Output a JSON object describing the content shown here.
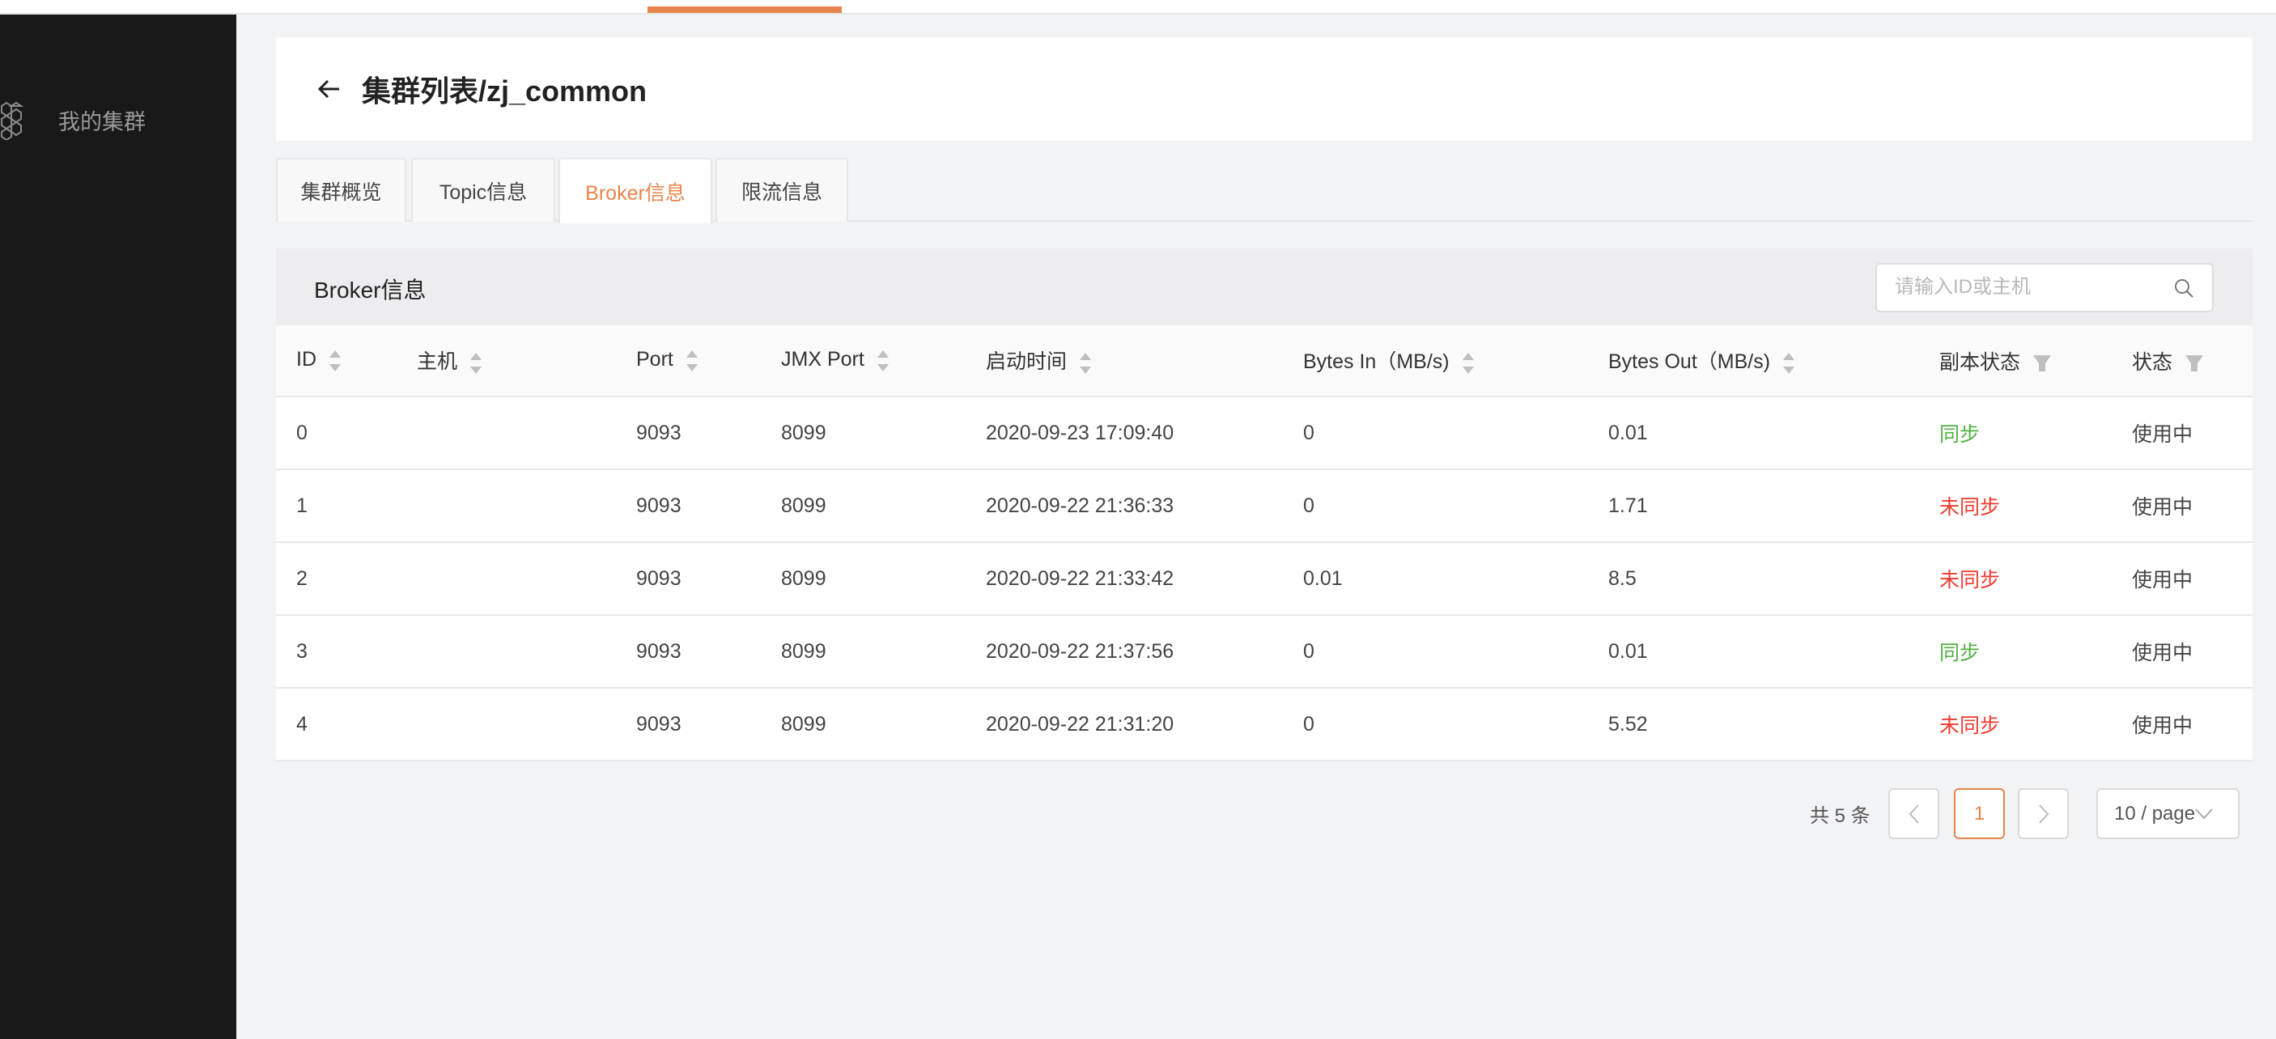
{
  "colors": {
    "accent": "#e8844a",
    "sidebar": "#191919",
    "synced": "#52b043",
    "unsynced": "#f03a2f"
  },
  "sidebar": {
    "items": [
      {
        "label": "我的集群",
        "icon": "hexagon-cluster-icon"
      }
    ]
  },
  "header": {
    "title": "集群列表/zj_common",
    "back_icon": "arrow-left-icon"
  },
  "tabs": [
    {
      "label": "集群概览"
    },
    {
      "label": "Topic信息"
    },
    {
      "label": "Broker信息",
      "active": true
    },
    {
      "label": "限流信息"
    }
  ],
  "broker": {
    "title": "Broker信息",
    "search": {
      "placeholder": "请输入ID或主机",
      "value": ""
    },
    "columns": [
      "ID",
      "主机",
      "Port",
      "JMX Port",
      "启动时间",
      "Bytes In（MB/s)",
      "Bytes Out（MB/s)",
      "副本状态",
      "状态"
    ],
    "rows": [
      {
        "id": "0",
        "host": "",
        "port": "9093",
        "jmx": "8099",
        "start": "2020-09-23 17:09:40",
        "in": "0",
        "out": "0.01",
        "replica": "同步",
        "replica_ok": true,
        "status": "使用中"
      },
      {
        "id": "1",
        "host": "",
        "port": "9093",
        "jmx": "8099",
        "start": "2020-09-22 21:36:33",
        "in": "0",
        "out": "1.71",
        "replica": "未同步",
        "replica_ok": false,
        "status": "使用中"
      },
      {
        "id": "2",
        "host": "",
        "port": "9093",
        "jmx": "8099",
        "start": "2020-09-22 21:33:42",
        "in": "0.01",
        "out": "8.5",
        "replica": "未同步",
        "replica_ok": false,
        "status": "使用中"
      },
      {
        "id": "3",
        "host": "",
        "port": "9093",
        "jmx": "8099",
        "start": "2020-09-22 21:37:56",
        "in": "0",
        "out": "0.01",
        "replica": "同步",
        "replica_ok": true,
        "status": "使用中"
      },
      {
        "id": "4",
        "host": "",
        "port": "9093",
        "jmx": "8099",
        "start": "2020-09-22 21:31:20",
        "in": "0",
        "out": "5.52",
        "replica": "未同步",
        "replica_ok": false,
        "status": "使用中"
      }
    ]
  },
  "pagination": {
    "total": "共 5 条",
    "current": "1",
    "page_size": "10 / page"
  }
}
